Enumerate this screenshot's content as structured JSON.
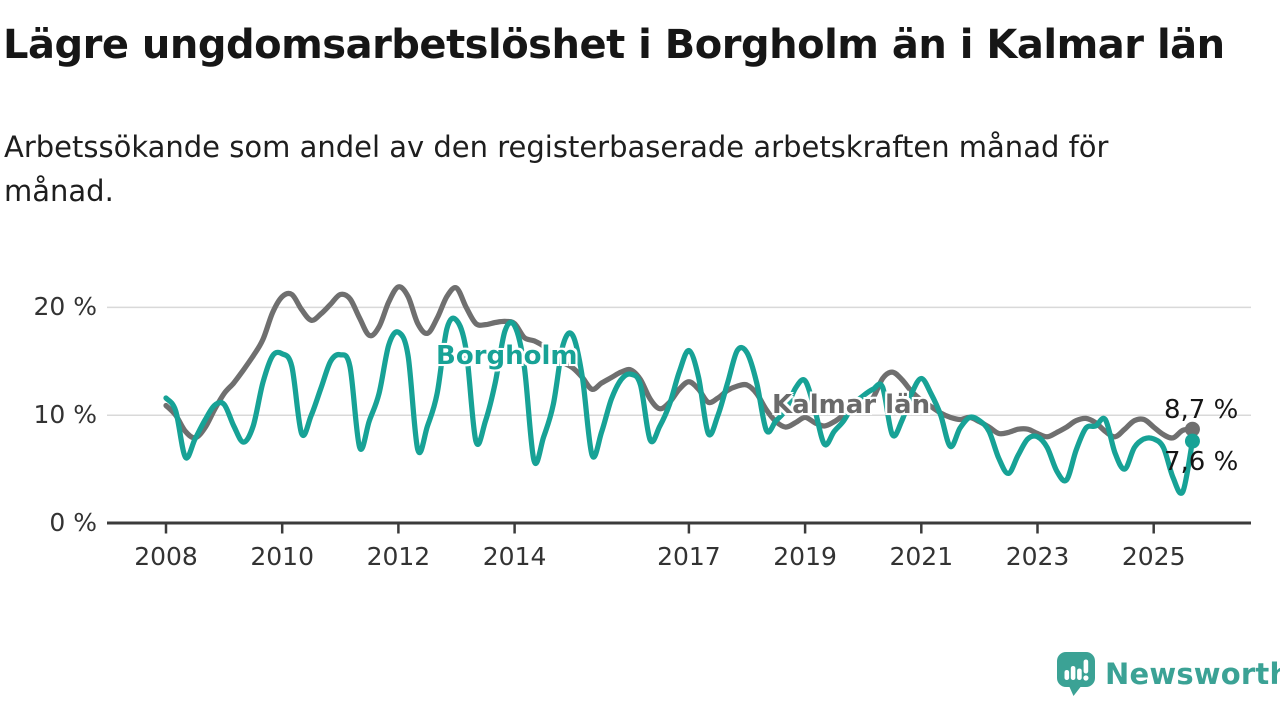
{
  "title": "Lägre ungdomsarbetslöshet i Borgholm än i Kalmar län",
  "subtitle": "Arbetssökande som andel av den registerbaserade arbetskraften månad för månad.",
  "branding": {
    "logo_text": "Newsworthy",
    "logo_icon": "bar-chart-speech-bubble-icon",
    "color": "#3BA295"
  },
  "chart_data": {
    "type": "line",
    "title": "Lägre ungdomsarbetslöshet i Borgholm än i Kalmar län",
    "grid": "horizontal",
    "legend_position": "inline-labels",
    "x_axis": {
      "unit": "year",
      "range_start": 2008.0,
      "step_years": 0.16667,
      "ticks": [
        2008,
        2010,
        2012,
        2014,
        2017,
        2019,
        2021,
        2023,
        2025
      ],
      "tick_labels": [
        "2008",
        "2010",
        "2012",
        "2014",
        "2017",
        "2019",
        "2021",
        "2023",
        "2025"
      ]
    },
    "y_axis": {
      "unit": "%",
      "range": [
        0,
        23
      ],
      "ticks": [
        0,
        10,
        20
      ],
      "tick_labels": [
        "0 %",
        "10 %",
        "20 %"
      ]
    },
    "series": [
      {
        "name": "Kalmar län",
        "label_text": "Kalmar län",
        "end_label": "8,7 %",
        "end_value": 8.7,
        "color": "#6F6F6F",
        "values": [
          10.9,
          10.0,
          8.5,
          7.9,
          8.8,
          10.5,
          12.0,
          13.0,
          14.2,
          15.5,
          17.0,
          19.5,
          21.0,
          21.2,
          19.8,
          18.8,
          19.4,
          20.3,
          21.2,
          20.8,
          19.0,
          17.4,
          18.2,
          20.5,
          21.9,
          21.0,
          18.5,
          17.6,
          19.0,
          21.0,
          21.8,
          20.0,
          18.5,
          18.4,
          18.6,
          18.7,
          18.5,
          17.2,
          16.9,
          16.4,
          15.6,
          14.9,
          14.4,
          13.5,
          12.4,
          13.0,
          13.5,
          14.0,
          14.2,
          13.3,
          11.5,
          10.6,
          11.2,
          12.4,
          13.1,
          12.4,
          11.2,
          11.6,
          12.3,
          12.7,
          12.8,
          12.0,
          10.5,
          9.4,
          8.9,
          9.3,
          9.8,
          9.3,
          9.0,
          9.4,
          10.0,
          10.4,
          10.9,
          11.6,
          13.4,
          14.0,
          13.3,
          12.2,
          11.4,
          10.8,
          10.2,
          9.8,
          9.6,
          9.8,
          9.4,
          8.9,
          8.3,
          8.4,
          8.7,
          8.7,
          8.3,
          8.0,
          8.4,
          8.9,
          9.5,
          9.7,
          9.3,
          8.5,
          8.0,
          8.7,
          9.5,
          9.6,
          8.9,
          8.2,
          7.9,
          8.6,
          8.7
        ]
      },
      {
        "name": "Borgholm",
        "label_text": "Borgholm",
        "end_label": "7,6 %",
        "end_value": 7.6,
        "color": "#17A296",
        "values": [
          11.6,
          10.4,
          6.1,
          7.8,
          9.5,
          10.9,
          11.0,
          9.0,
          7.5,
          9.0,
          13.0,
          15.5,
          15.7,
          14.5,
          8.3,
          10.0,
          12.5,
          15.0,
          15.6,
          14.5,
          7.0,
          9.5,
          12.0,
          16.5,
          17.7,
          15.5,
          6.8,
          9.0,
          12.0,
          18.0,
          18.8,
          16.0,
          7.6,
          9.5,
          13.0,
          17.8,
          18.3,
          14.5,
          5.8,
          8.0,
          11.0,
          16.5,
          17.4,
          13.5,
          6.3,
          8.5,
          11.5,
          13.3,
          13.8,
          12.8,
          7.7,
          9.0,
          11.0,
          14.0,
          16.0,
          13.5,
          8.3,
          10.0,
          13.0,
          16.0,
          15.8,
          13.0,
          8.6,
          9.5,
          10.5,
          12.5,
          13.2,
          10.5,
          7.3,
          8.5,
          9.5,
          11.0,
          11.8,
          12.4,
          12.6,
          8.2,
          9.5,
          12.0,
          13.4,
          12.0,
          10.0,
          7.1,
          8.8,
          9.8,
          9.5,
          8.5,
          6.0,
          4.6,
          6.3,
          7.8,
          8.0,
          7.0,
          4.8,
          4.0,
          6.8,
          8.8,
          9.0,
          9.6,
          6.5,
          5.0,
          7.0,
          7.8,
          7.8,
          7.0,
          4.2,
          2.9,
          7.6
        ]
      }
    ]
  }
}
